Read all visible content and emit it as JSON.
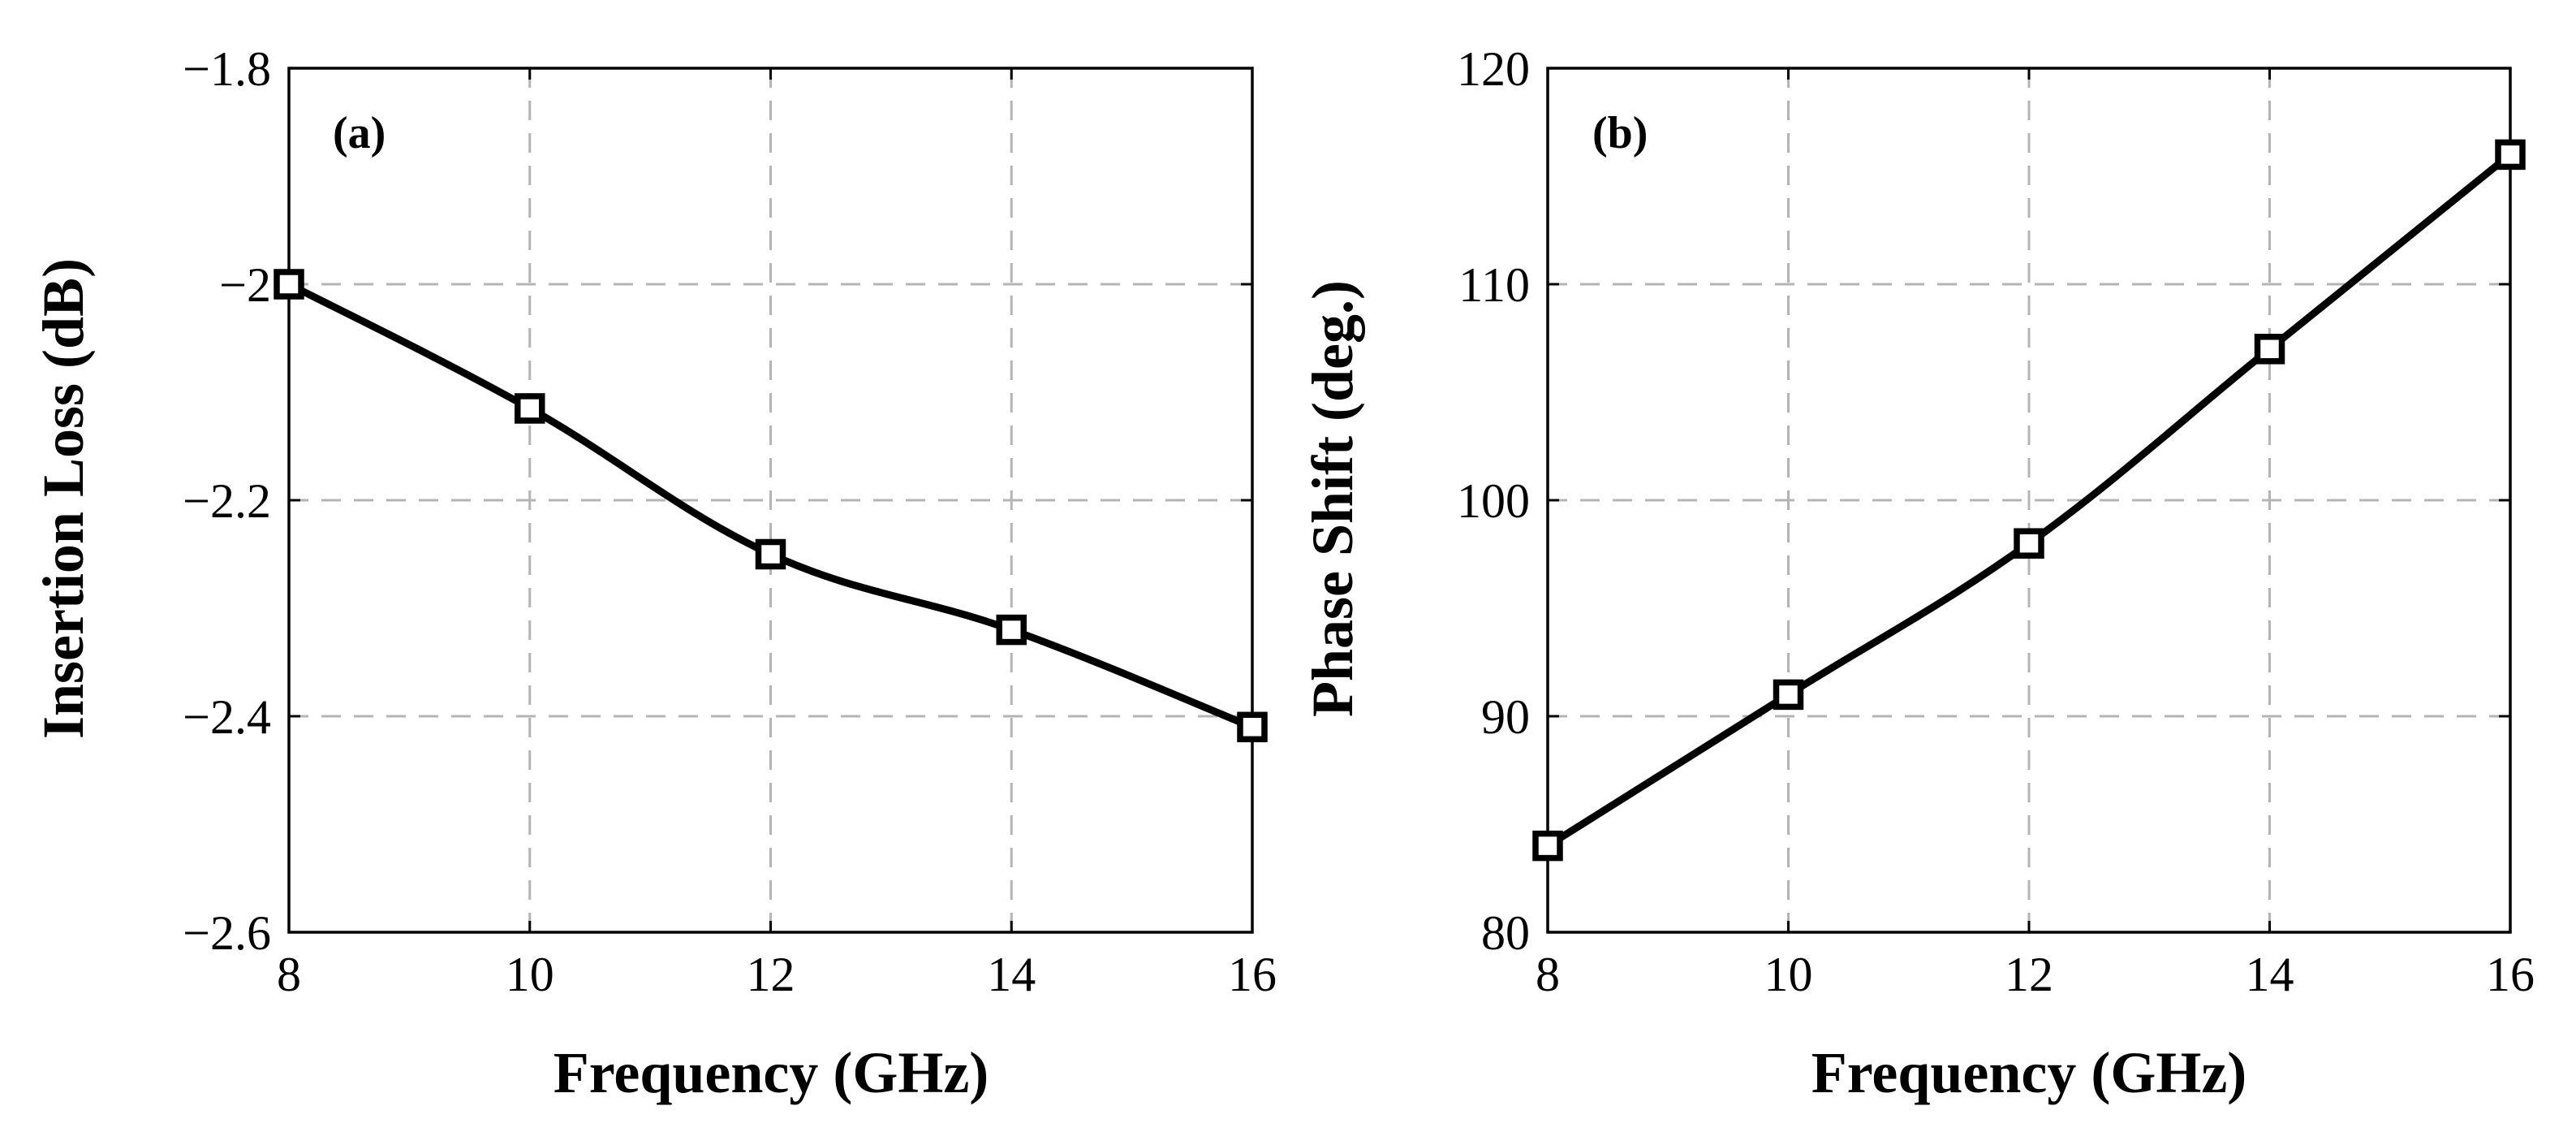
{
  "chart_data": [
    {
      "type": "line",
      "panel_label": "(a)",
      "title": "",
      "xlabel": "Frequency (GHz)",
      "ylabel": "Insertion Loss (dB)",
      "x": [
        8,
        10,
        12,
        14,
        16
      ],
      "xlim": [
        8,
        16
      ],
      "ylim": [
        -2.6,
        -1.8
      ],
      "xticks": [
        8,
        10,
        12,
        14,
        16
      ],
      "xtick_labels": [
        "8",
        "10",
        "12",
        "14",
        "16"
      ],
      "yticks": [
        -2.6,
        -2.4,
        -2.2,
        -2.0,
        -1.8
      ],
      "ytick_labels": [
        "−2.6",
        "−2.4",
        "−2.2",
        "−2",
        "−1.8"
      ],
      "grid": true,
      "series": [
        {
          "name": "Insertion Loss",
          "marker": "square",
          "color": "#000000",
          "values": [
            -2.0,
            -2.115,
            -2.25,
            -2.32,
            -2.41
          ]
        }
      ]
    },
    {
      "type": "line",
      "panel_label": "(b)",
      "title": "",
      "xlabel": "Frequency (GHz)",
      "ylabel": "Phase Shift (deg.)",
      "x": [
        8,
        10,
        12,
        14,
        16
      ],
      "xlim": [
        8,
        16
      ],
      "ylim": [
        80,
        120
      ],
      "xticks": [
        8,
        10,
        12,
        14,
        16
      ],
      "xtick_labels": [
        "8",
        "10",
        "12",
        "14",
        "16"
      ],
      "yticks": [
        80,
        90,
        100,
        110,
        120
      ],
      "ytick_labels": [
        "80",
        "90",
        "100",
        "110",
        "120"
      ],
      "grid": true,
      "series": [
        {
          "name": "Phase Shift",
          "marker": "square",
          "color": "#000000",
          "values": [
            84,
            91,
            98,
            107,
            116
          ]
        }
      ]
    }
  ]
}
